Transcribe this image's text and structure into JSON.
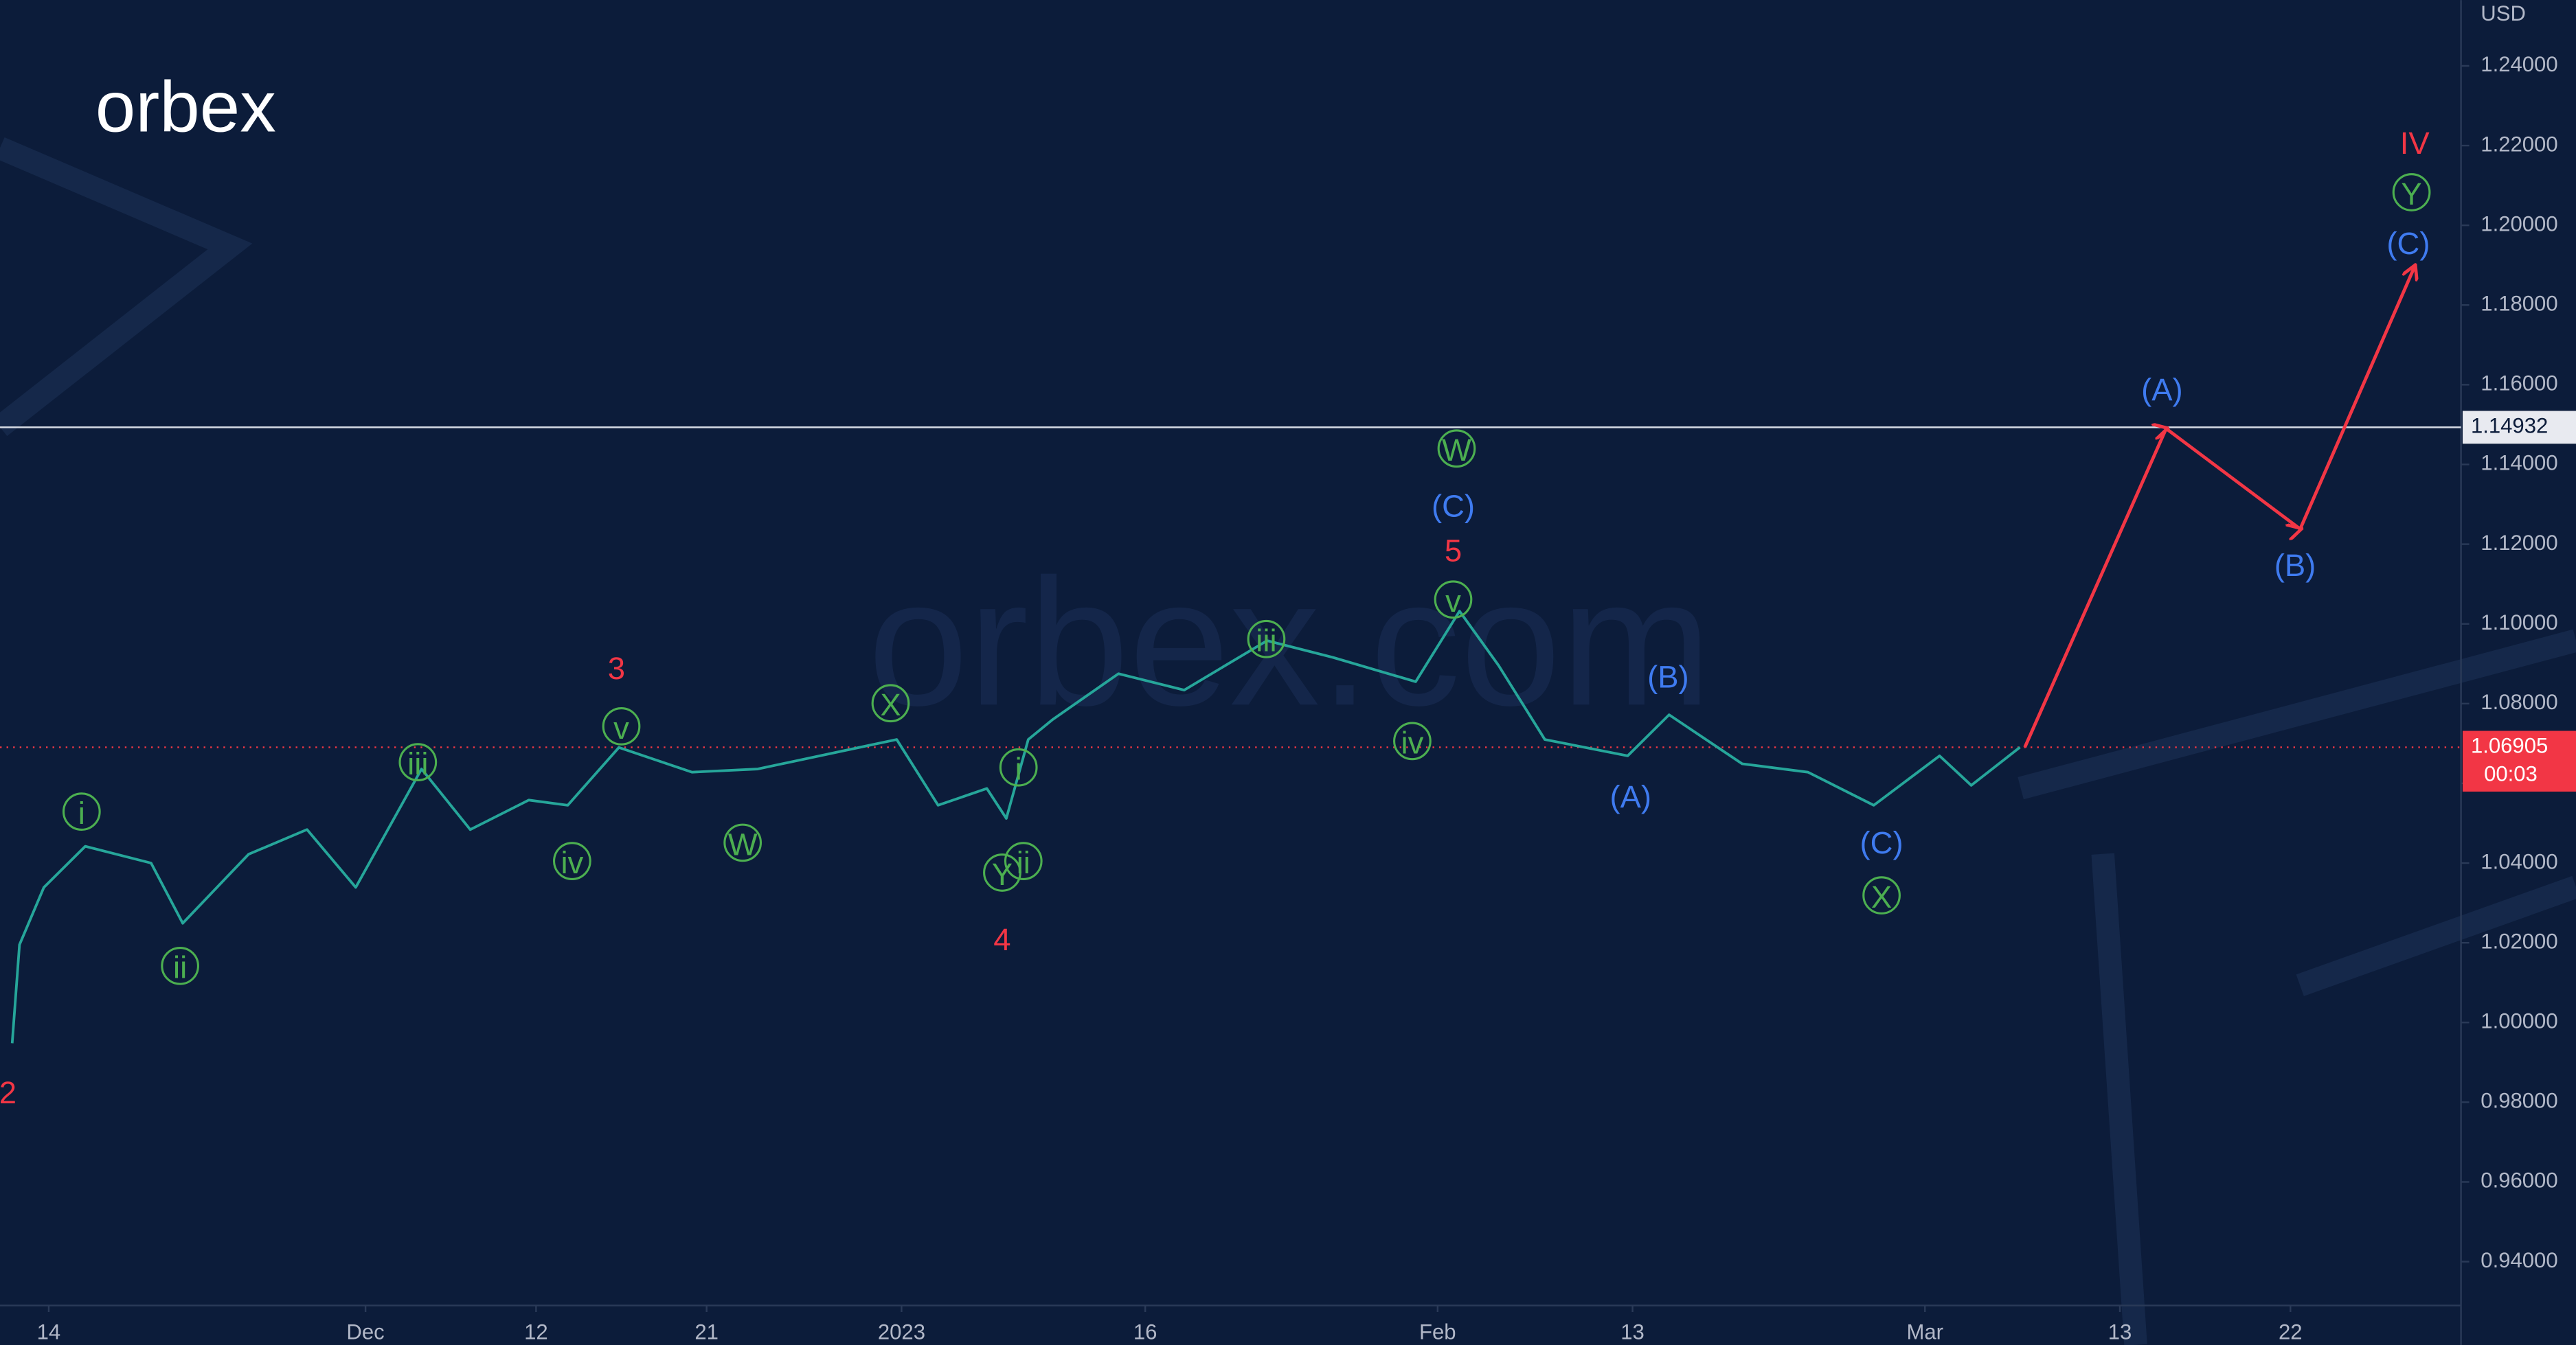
{
  "chart_data": {
    "type": "line",
    "logo": "orbex",
    "watermark": "orbex.com",
    "currency": "USD",
    "xlim": [
      -2,
      99
    ],
    "xticks": [
      {
        "value": 0,
        "label": "14"
      },
      {
        "value": 13,
        "label": "Dec"
      },
      {
        "value": 20,
        "label": "12"
      },
      {
        "value": 27,
        "label": "21"
      },
      {
        "value": 35,
        "label": "2023"
      },
      {
        "value": 45,
        "label": "16"
      },
      {
        "value": 57,
        "label": "Feb"
      },
      {
        "value": 65,
        "label": "13"
      },
      {
        "value": 77,
        "label": "Mar"
      },
      {
        "value": 85,
        "label": "13"
      },
      {
        "value": 92,
        "label": "22"
      }
    ],
    "ylim": [
      0.929,
      1.2565
    ],
    "yticks": [
      {
        "value": 0.94,
        "label": "0.94000"
      },
      {
        "value": 0.96,
        "label": "0.96000"
      },
      {
        "value": 0.98,
        "label": "0.98000"
      },
      {
        "value": 1.0,
        "label": "1.00000"
      },
      {
        "value": 1.02,
        "label": "1.02000"
      },
      {
        "value": 1.04,
        "label": "1.04000"
      },
      {
        "value": 1.06,
        "label": "1.06000"
      },
      {
        "value": 1.08,
        "label": "1.08000"
      },
      {
        "value": 1.1,
        "label": "1.10000"
      },
      {
        "value": 1.12,
        "label": "1.12000"
      },
      {
        "value": 1.14,
        "label": "1.14000"
      },
      {
        "value": 1.16,
        "label": "1.16000"
      },
      {
        "value": 1.18,
        "label": "1.18000"
      },
      {
        "value": 1.2,
        "label": "1.20000"
      },
      {
        "value": 1.22,
        "label": "1.22000"
      },
      {
        "value": 1.24,
        "label": "1.24000"
      }
    ],
    "level": 1.14932,
    "last_price": 1.06905,
    "countdown": "00:03",
    "series": [
      {
        "color": "#26a69a",
        "x": [
          -1.5,
          -1.2,
          -0.2,
          1.5,
          4.2,
          5.5,
          8.2,
          10.6,
          12.6,
          15.3,
          17.3,
          19.7,
          21.3,
          23.4,
          26.4,
          29.1,
          34.8,
          36.5,
          38.5,
          39.3,
          40.2,
          41.2,
          43.9,
          46.6,
          50.0,
          52.7,
          56.1,
          57.9,
          59.5,
          61.4,
          64.8,
          66.5,
          69.5,
          72.2,
          74.9,
          77.6,
          78.9,
          80.9
        ],
        "values": [
          0.9948,
          1.0195,
          1.0339,
          1.0442,
          1.04,
          1.0249,
          1.0422,
          1.0484,
          1.0339,
          1.0636,
          1.0484,
          1.0558,
          1.0545,
          1.069,
          1.0628,
          1.0636,
          1.071,
          1.0545,
          1.0587,
          1.0512,
          1.071,
          1.076,
          1.0875,
          1.0834,
          1.0958,
          1.0916,
          1.0855,
          1.1032,
          1.0896,
          1.071,
          1.0669,
          1.0772,
          1.0649,
          1.0628,
          1.0545,
          1.0669,
          1.0595,
          1.06905
        ]
      },
      {
        "color": "#f23645",
        "arrow": true,
        "x": [
          81.1,
          86.9,
          92.4,
          97.1
        ],
        "values": [
          1.06905,
          1.149,
          1.1238,
          1.1897
        ]
      }
    ],
    "annotations": [
      {
        "text": "i",
        "x": 1.35,
        "y": 1.0529,
        "color": "#4caf50",
        "circled": true
      },
      {
        "text": "ii",
        "x": 5.39,
        "y": 1.0142,
        "color": "#4caf50",
        "circled": true
      },
      {
        "text": "iii",
        "x": 15.15,
        "y": 1.0653,
        "color": "#4caf50",
        "circled": true
      },
      {
        "text": "iv",
        "x": 21.48,
        "y": 1.0405,
        "color": "#4caf50",
        "circled": true
      },
      {
        "text": "v",
        "x": 23.5,
        "y": 1.0743,
        "color": "#4caf50",
        "circled": true
      },
      {
        "text": "W",
        "x": 28.48,
        "y": 1.0451,
        "color": "#4caf50",
        "circled": true
      },
      {
        "text": "X",
        "x": 34.55,
        "y": 1.0801,
        "color": "#4caf50",
        "circled": true
      },
      {
        "text": "Y",
        "x": 39.13,
        "y": 1.0376,
        "color": "#4caf50",
        "circled": true
      },
      {
        "text": "ii",
        "x": 40.0,
        "y": 1.0405,
        "color": "#4caf50",
        "circled": true
      },
      {
        "text": "i",
        "x": 39.8,
        "y": 1.064,
        "color": "#4caf50",
        "circled": true
      },
      {
        "text": "iii",
        "x": 49.97,
        "y": 1.0962,
        "color": "#4caf50",
        "circled": true
      },
      {
        "text": "v",
        "x": 57.64,
        "y": 1.1061,
        "color": "#4caf50",
        "circled": true
      },
      {
        "text": "iv",
        "x": 55.96,
        "y": 1.0706,
        "color": "#4caf50",
        "circled": true
      },
      {
        "text": "W",
        "x": 57.78,
        "y": 1.144,
        "color": "#4caf50",
        "circled": true
      },
      {
        "text": "X",
        "x": 75.22,
        "y": 1.0319,
        "color": "#4caf50",
        "circled": true
      },
      {
        "text": "Y",
        "x": 96.97,
        "y": 1.2083,
        "color": "#4caf50",
        "circled": true
      },
      {
        "text": "2",
        "x": -1.68,
        "y": 0.9824,
        "color": "#f23645",
        "circled": false
      },
      {
        "text": "3",
        "x": 23.3,
        "y": 1.0888,
        "color": "#f23645",
        "circled": false
      },
      {
        "text": "4",
        "x": 39.13,
        "y": 1.0208,
        "color": "#f23645",
        "circled": false
      },
      {
        "text": "5",
        "x": 57.64,
        "y": 1.1184,
        "color": "#f23645",
        "circled": false
      },
      {
        "text": "IV",
        "x": 97.1,
        "y": 1.2206,
        "color": "#f23645",
        "circled": false
      },
      {
        "text": "(C)",
        "x": 57.64,
        "y": 1.1296,
        "color": "#3f7bf0",
        "circled": false
      },
      {
        "text": "(B)",
        "x": 66.46,
        "y": 1.0867,
        "color": "#3f7bf0",
        "circled": false
      },
      {
        "text": "(A)",
        "x": 64.92,
        "y": 1.0566,
        "color": "#3f7bf0",
        "circled": false
      },
      {
        "text": "(C)",
        "x": 75.22,
        "y": 1.0451,
        "color": "#3f7bf0",
        "circled": false
      },
      {
        "text": "(A)",
        "x": 86.73,
        "y": 1.1588,
        "color": "#3f7bf0",
        "circled": false
      },
      {
        "text": "(B)",
        "x": 92.19,
        "y": 1.1147,
        "color": "#3f7bf0",
        "circled": false
      },
      {
        "text": "(C)",
        "x": 96.84,
        "y": 1.1955,
        "color": "#3f7bf0",
        "circled": false
      }
    ]
  }
}
